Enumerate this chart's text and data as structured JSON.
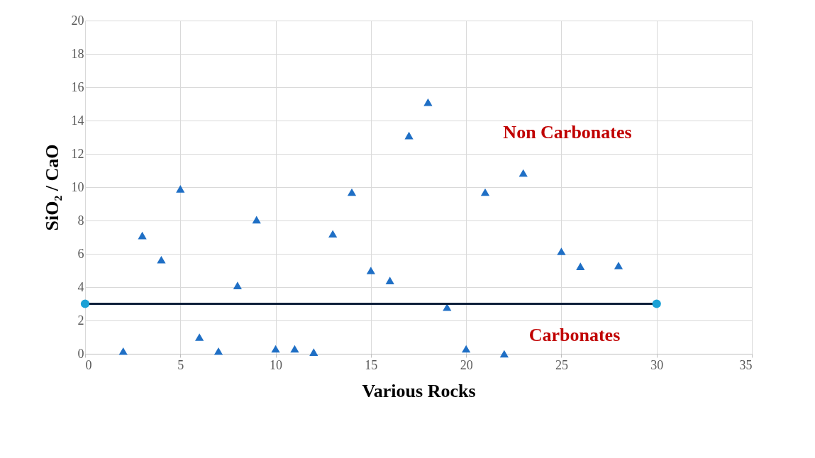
{
  "chart_data": {
    "type": "scatter",
    "xlabel": "Various Rocks",
    "ylabel": "SiO₂ / CaO",
    "xlim": [
      0,
      35
    ],
    "xticks": [
      0,
      5,
      10,
      15,
      20,
      25,
      30,
      35
    ],
    "ylim": [
      0,
      20
    ],
    "yticks": [
      0,
      2,
      4,
      6,
      8,
      10,
      12,
      14,
      16,
      18,
      20
    ],
    "grid": true,
    "series": [
      {
        "marker": "triangle",
        "color": "#1f6fc5",
        "x": [
          2,
          3,
          4,
          5,
          6,
          7,
          8,
          9,
          10,
          11,
          12,
          13,
          14,
          15,
          16,
          17,
          18,
          19,
          20,
          21,
          22,
          23,
          25,
          26,
          28
        ],
        "values": [
          0.16,
          7.1,
          5.65,
          9.9,
          1.0,
          0.16,
          4.1,
          8.05,
          0.3,
          0.3,
          0.1,
          7.2,
          9.7,
          5.0,
          4.4,
          13.1,
          15.1,
          2.8,
          0.3,
          9.7,
          0.0,
          10.85,
          6.15,
          5.25,
          5.3
        ]
      },
      {
        "type": "line",
        "marker": "none",
        "line_style": "solid",
        "color": "#0e1f3a",
        "x": [
          0,
          30
        ],
        "values": [
          3,
          3
        ]
      },
      {
        "type": "scatter",
        "marker": "circle",
        "color": "#1ba1d6",
        "x": [
          0,
          30
        ],
        "values": [
          3,
          3
        ]
      }
    ],
    "annotations": [
      "Non Carbonates",
      "Carbonates"
    ]
  }
}
